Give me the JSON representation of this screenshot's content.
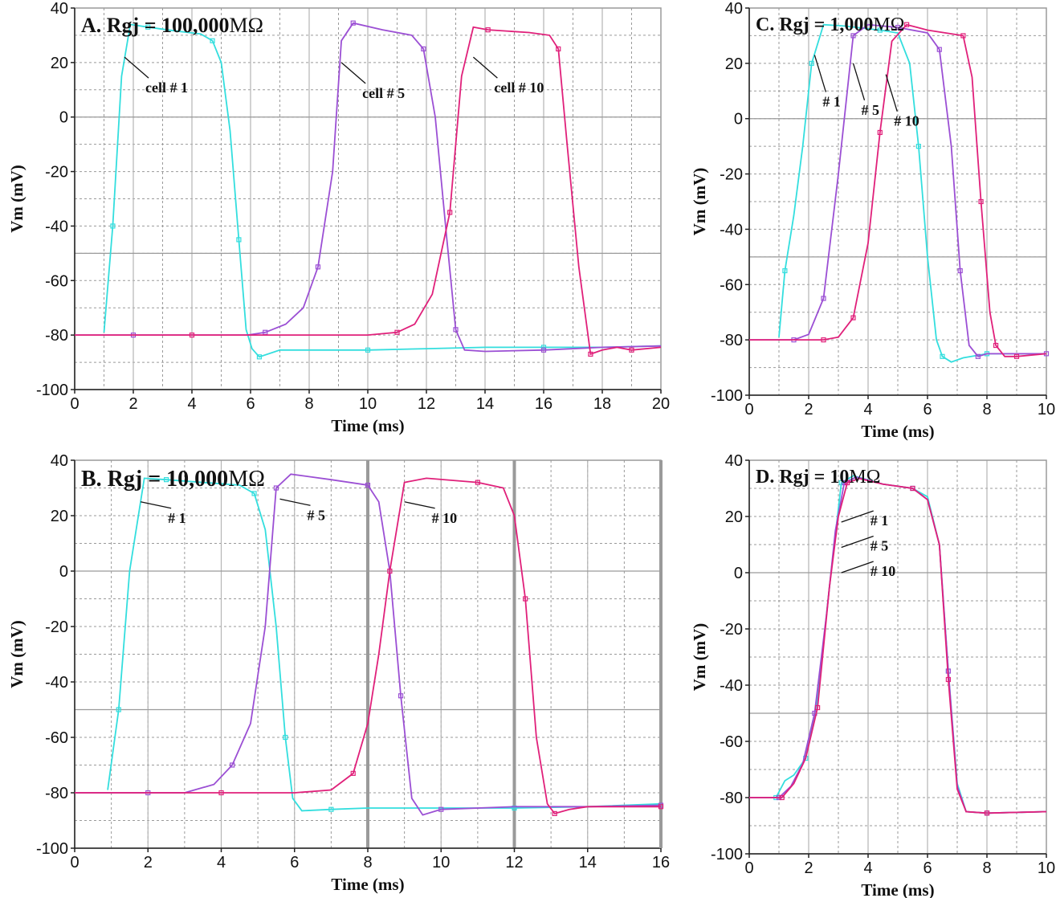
{
  "chart_data": [
    {
      "panel": "A",
      "type": "line",
      "title": "A. Rgj = 100,000",
      "title_unit": "MΩ",
      "xlabel": "Time (ms)",
      "ylabel": "Vm (mV)",
      "xlim": [
        0,
        20
      ],
      "ylim": [
        -100,
        40
      ],
      "xticks": [
        0,
        2,
        4,
        6,
        8,
        10,
        12,
        14,
        16,
        18,
        20
      ],
      "yticks": [
        -100,
        -80,
        -60,
        -40,
        -20,
        0,
        20,
        40
      ],
      "grid": true,
      "series": [
        {
          "color": "#33dede",
          "x": [
            1.0,
            1.3,
            1.6,
            1.9,
            2.5,
            3.5,
            4.3,
            4.7,
            5.0,
            5.3,
            5.6,
            5.85,
            6.05,
            6.3,
            7.0,
            8.0,
            10,
            12,
            14,
            16,
            18,
            20
          ],
          "y": [
            -79,
            -40,
            15,
            34,
            33,
            31.5,
            30.5,
            28,
            20,
            -5,
            -45,
            -78,
            -85,
            -88,
            -85.5,
            -85.5,
            -85.5,
            -85,
            -84.5,
            -84.5,
            -84.5,
            -84
          ]
        },
        {
          "color": "#9b4fd4",
          "x": [
            0,
            2,
            4,
            5.9,
            6.5,
            7.2,
            7.8,
            8.3,
            8.8,
            9.1,
            9.5,
            10.5,
            11.5,
            11.9,
            12.3,
            12.7,
            13.0,
            13.3,
            14,
            16,
            18,
            20
          ],
          "y": [
            -80,
            -80,
            -80,
            -80,
            -79,
            -76,
            -70,
            -55,
            -20,
            28,
            34.5,
            32,
            30,
            25,
            0,
            -45,
            -78,
            -85.5,
            -86,
            -85.5,
            -84.5,
            -84
          ]
        },
        {
          "color": "#e0207a",
          "x": [
            0,
            4,
            8,
            10,
            11,
            11.6,
            12.2,
            12.8,
            13.2,
            13.6,
            14.1,
            15.5,
            16.2,
            16.5,
            16.8,
            17.2,
            17.6,
            18,
            18.5,
            19,
            20
          ],
          "y": [
            -80,
            -80,
            -80,
            -80,
            -79,
            -76,
            -65,
            -35,
            15,
            33,
            32,
            31,
            30,
            25,
            -10,
            -55,
            -87,
            -85.5,
            -84.5,
            -85.5,
            -84.5
          ]
        }
      ],
      "annotations": [
        {
          "text": "cell # 1",
          "x": 1.7,
          "y": 22
        },
        {
          "text": "cell # 5",
          "x": 9.1,
          "y": 20
        },
        {
          "text": "cell # 10",
          "x": 13.6,
          "y": 22
        }
      ]
    },
    {
      "panel": "B",
      "type": "line",
      "title": "B. Rgj = 10,000",
      "title_unit": "MΩ",
      "xlabel": "Time (ms)",
      "ylabel": "Vm (mV)",
      "xlim": [
        0,
        16
      ],
      "ylim": [
        -100,
        40
      ],
      "xticks": [
        0,
        2,
        4,
        6,
        8,
        10,
        12,
        14,
        16
      ],
      "yticks": [
        -100,
        -80,
        -60,
        -40,
        -20,
        0,
        20,
        40
      ],
      "grid": true,
      "series": [
        {
          "color": "#33dede",
          "x": [
            0.9,
            1.2,
            1.5,
            1.9,
            2.5,
            3.5,
            4.5,
            4.9,
            5.2,
            5.5,
            5.75,
            5.95,
            6.2,
            7,
            8,
            10,
            12,
            14,
            16
          ],
          "y": [
            -79,
            -50,
            0,
            33.5,
            33,
            32,
            31,
            28,
            15,
            -20,
            -60,
            -82,
            -86.5,
            -86,
            -85.5,
            -85.5,
            -85.5,
            -85,
            -84
          ]
        },
        {
          "color": "#9b4fd4",
          "x": [
            0,
            2,
            3,
            3.8,
            4.3,
            4.8,
            5.2,
            5.5,
            5.9,
            7,
            8,
            8.3,
            8.6,
            8.9,
            9.2,
            9.5,
            10,
            12,
            14,
            16
          ],
          "y": [
            -80,
            -80,
            -80,
            -77,
            -70,
            -55,
            -20,
            30,
            35,
            33,
            31,
            25,
            0,
            -45,
            -82,
            -88,
            -86,
            -85,
            -85,
            -84.5
          ]
        },
        {
          "color": "#e0207a",
          "x": [
            0,
            4,
            6,
            7,
            7.6,
            8.0,
            8.3,
            8.6,
            9.0,
            9.6,
            11,
            11.7,
            12.0,
            12.3,
            12.6,
            12.9,
            13.1,
            13.5,
            14,
            16
          ],
          "y": [
            -80,
            -80,
            -80,
            -79,
            -73,
            -55,
            -30,
            0,
            32,
            33.5,
            32,
            30,
            20,
            -10,
            -60,
            -84,
            -87.5,
            -86,
            -85,
            -85
          ]
        }
      ],
      "annotations": [
        {
          "text": "# 1",
          "x": 1.8,
          "y": 25
        },
        {
          "text": "# 5",
          "x": 5.6,
          "y": 26
        },
        {
          "text": "# 10",
          "x": 9.0,
          "y": 25
        }
      ]
    },
    {
      "panel": "C",
      "type": "line",
      "title": "C. Rgj = 1,000",
      "title_unit": "MΩ",
      "xlabel": "Time (ms)",
      "ylabel": "Vm (mV)",
      "xlim": [
        0,
        10
      ],
      "ylim": [
        -100,
        40
      ],
      "xticks": [
        0,
        2,
        4,
        6,
        8,
        10
      ],
      "yticks": [
        -100,
        -80,
        -60,
        -40,
        -20,
        0,
        20,
        40
      ],
      "grid": true,
      "series": [
        {
          "color": "#33dede",
          "x": [
            1.0,
            1.2,
            1.5,
            1.8,
            2.1,
            2.5,
            3.2,
            4.4,
            5.0,
            5.4,
            5.7,
            6.0,
            6.3,
            6.5,
            6.8,
            7.2,
            8,
            10
          ],
          "y": [
            -79,
            -55,
            -35,
            -10,
            20,
            34,
            33.5,
            32,
            31,
            20,
            -10,
            -50,
            -80,
            -86,
            -88,
            -86.5,
            -85,
            -85
          ]
        },
        {
          "color": "#9b4fd4",
          "x": [
            0,
            1.5,
            2.0,
            2.5,
            3.0,
            3.5,
            4.0,
            5.0,
            6.0,
            6.4,
            6.8,
            7.1,
            7.4,
            7.7,
            8,
            10
          ],
          "y": [
            -80,
            -80,
            -78,
            -65,
            -20,
            30,
            34,
            33,
            31,
            25,
            -10,
            -55,
            -82,
            -86,
            -85,
            -85
          ]
        },
        {
          "color": "#e0207a",
          "x": [
            0,
            2.5,
            3.0,
            3.5,
            4.0,
            4.4,
            4.8,
            5.3,
            6.0,
            7.2,
            7.5,
            7.8,
            8.1,
            8.3,
            8.6,
            9,
            10
          ],
          "y": [
            -80,
            -80,
            -79,
            -72,
            -45,
            -5,
            28,
            34,
            32,
            30,
            15,
            -30,
            -70,
            -82,
            -86,
            -86,
            -85
          ]
        }
      ],
      "annotations": [
        {
          "text": "# 1",
          "x": 2.2,
          "y": 23
        },
        {
          "text": "# 5",
          "x": 3.5,
          "y": 20
        },
        {
          "text": "# 10",
          "x": 4.6,
          "y": 16
        }
      ]
    },
    {
      "panel": "D",
      "type": "line",
      "title": "D. Rgj = 10",
      "title_unit": "MΩ",
      "xlabel": "Time (ms)",
      "ylabel": "Vm (mV)",
      "xlim": [
        0,
        10
      ],
      "ylim": [
        -100,
        40
      ],
      "xticks": [
        0,
        2,
        4,
        6,
        8,
        10
      ],
      "yticks": [
        -100,
        -80,
        -60,
        -40,
        -20,
        0,
        20,
        40
      ],
      "grid": true,
      "series": [
        {
          "color": "#33dede",
          "x": [
            0,
            0.9,
            1.2,
            1.5,
            1.9,
            2.3,
            2.7,
            3.1,
            3.5,
            4.5,
            5.5,
            6.0,
            6.4,
            6.7,
            7.0,
            7.3,
            8,
            10
          ],
          "y": [
            -80,
            -80,
            -74,
            -72,
            -66,
            -45,
            -5,
            32,
            34.5,
            31.5,
            30,
            27,
            10,
            -35,
            -75,
            -85,
            -85.5,
            -85
          ]
        },
        {
          "color": "#9b4fd4",
          "x": [
            0,
            1.0,
            1.4,
            1.8,
            2.2,
            2.6,
            2.9,
            3.2,
            3.6,
            4.5,
            5.5,
            6.0,
            6.4,
            6.7,
            7.0,
            7.3,
            8,
            10
          ],
          "y": [
            -80,
            -80,
            -76,
            -68,
            -50,
            -15,
            15,
            32,
            34,
            31.5,
            30,
            26,
            10,
            -35,
            -76,
            -85,
            -85.5,
            -85
          ]
        },
        {
          "color": "#e0207a",
          "x": [
            0,
            1.1,
            1.5,
            1.9,
            2.3,
            2.7,
            3.0,
            3.3,
            3.7,
            4.5,
            5.5,
            6.0,
            6.4,
            6.7,
            7.0,
            7.3,
            8,
            10
          ],
          "y": [
            -80,
            -80,
            -75,
            -66,
            -48,
            -5,
            20,
            32,
            33.5,
            31.5,
            30,
            26,
            10,
            -38,
            -77,
            -85,
            -85.5,
            -85
          ]
        }
      ],
      "annotations": [
        {
          "text": "# 1",
          "x": 3.1,
          "y": 18
        },
        {
          "text": "# 5",
          "x": 3.1,
          "y": 9
        },
        {
          "text": "# 10",
          "x": 3.1,
          "y": 0
        }
      ]
    }
  ]
}
